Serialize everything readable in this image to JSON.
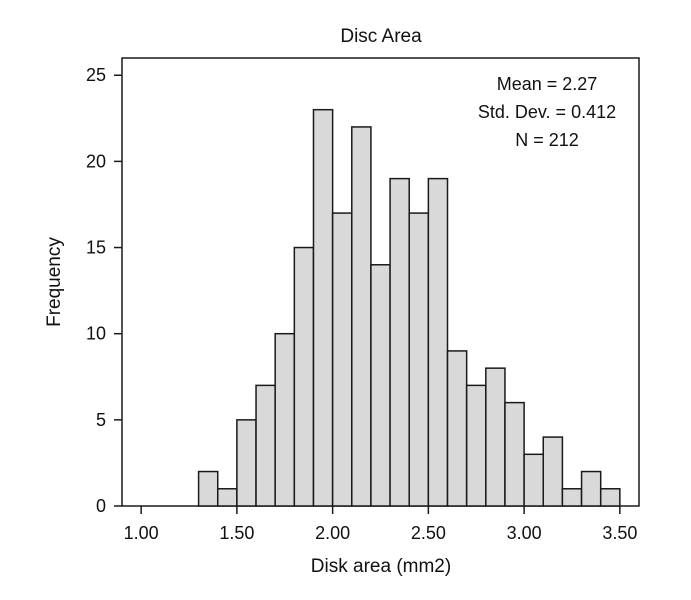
{
  "chart_data": {
    "type": "bar",
    "title": "Disc Area",
    "xlabel": "Disk area (mm2)",
    "ylabel": "Frequency",
    "xlim": [
      0.9,
      3.6
    ],
    "ylim": [
      0,
      26
    ],
    "xticks": [
      1.0,
      1.5,
      2.0,
      2.5,
      3.0,
      3.5
    ],
    "xtick_labels": [
      "1.00",
      "1.50",
      "2.00",
      "2.50",
      "3.00",
      "3.50"
    ],
    "yticks": [
      0,
      5,
      10,
      15,
      20,
      25
    ],
    "ytick_labels": [
      "0",
      "5",
      "10",
      "15",
      "20",
      "25"
    ],
    "grid": false,
    "bins": [
      {
        "start": 1.3,
        "end": 1.4,
        "count": 2
      },
      {
        "start": 1.4,
        "end": 1.5,
        "count": 1
      },
      {
        "start": 1.5,
        "end": 1.6,
        "count": 5
      },
      {
        "start": 1.6,
        "end": 1.7,
        "count": 7
      },
      {
        "start": 1.7,
        "end": 1.8,
        "count": 10
      },
      {
        "start": 1.8,
        "end": 1.9,
        "count": 15
      },
      {
        "start": 1.9,
        "end": 2.0,
        "count": 23
      },
      {
        "start": 2.0,
        "end": 2.1,
        "count": 17
      },
      {
        "start": 2.1,
        "end": 2.2,
        "count": 22
      },
      {
        "start": 2.2,
        "end": 2.3,
        "count": 14
      },
      {
        "start": 2.3,
        "end": 2.4,
        "count": 19
      },
      {
        "start": 2.4,
        "end": 2.5,
        "count": 17
      },
      {
        "start": 2.5,
        "end": 2.6,
        "count": 19
      },
      {
        "start": 2.6,
        "end": 2.7,
        "count": 9
      },
      {
        "start": 2.7,
        "end": 2.8,
        "count": 7
      },
      {
        "start": 2.8,
        "end": 2.9,
        "count": 8
      },
      {
        "start": 2.9,
        "end": 3.0,
        "count": 6
      },
      {
        "start": 3.0,
        "end": 3.1,
        "count": 3
      },
      {
        "start": 3.1,
        "end": 3.2,
        "count": 4
      },
      {
        "start": 3.2,
        "end": 3.3,
        "count": 1
      },
      {
        "start": 3.3,
        "end": 3.4,
        "count": 2
      },
      {
        "start": 3.4,
        "end": 3.5,
        "count": 1
      }
    ],
    "stats": {
      "mean": "Mean = 2.27",
      "std": "Std. Dev. = 0.412",
      "n": "N = 212"
    },
    "bar_fill": "#d9d9d9",
    "bar_stroke": "#1a1a1a"
  }
}
